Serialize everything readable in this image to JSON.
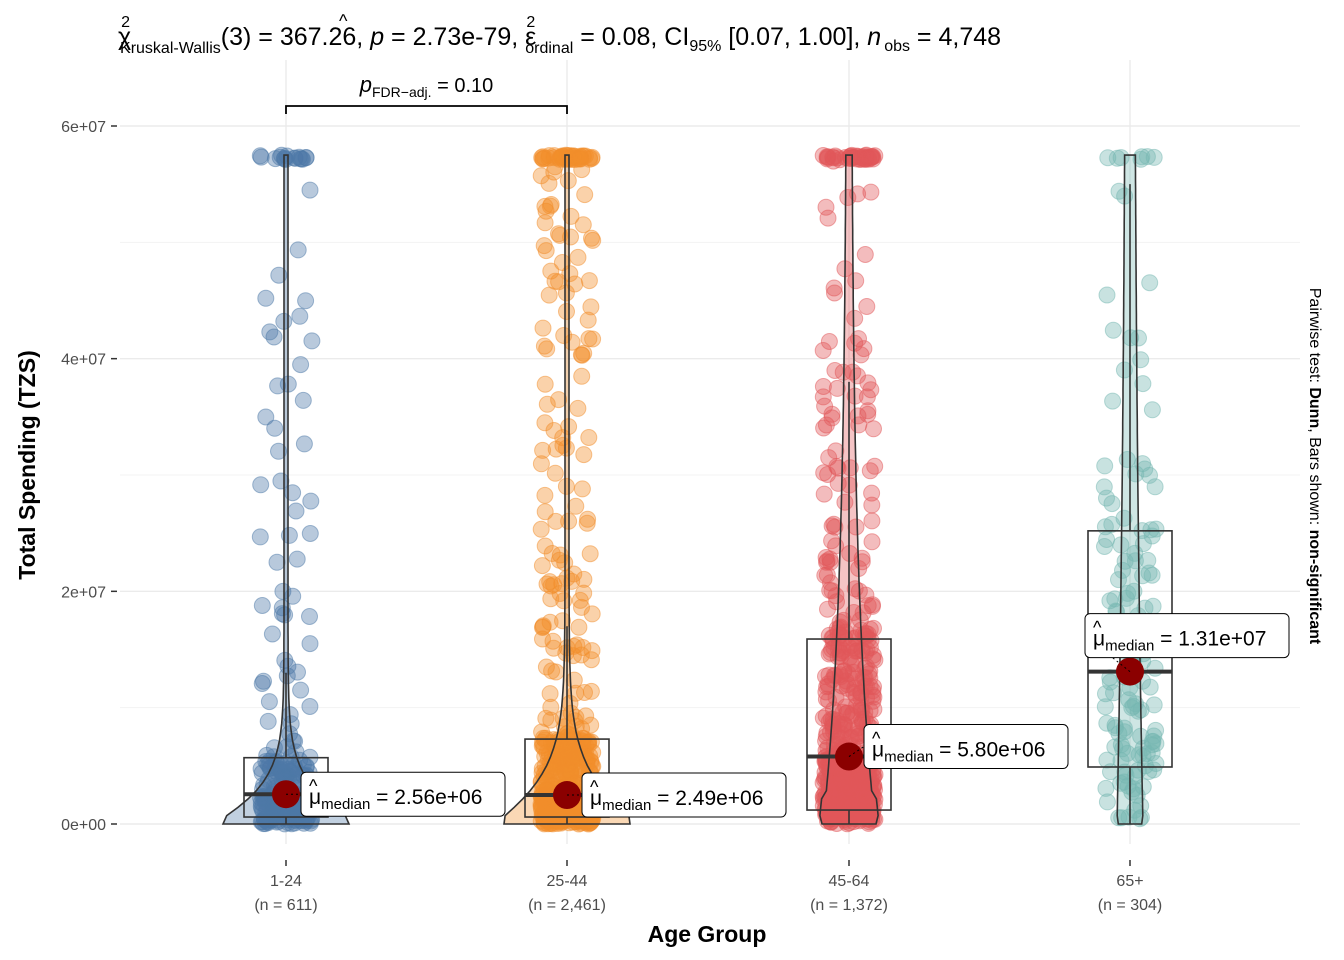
{
  "chart_data": {
    "type": "violin-box-scatter",
    "title": {
      "chi_symbol": "χ",
      "chi_sup": "2",
      "chi_sub": "Kruskal-Wallis",
      "df_part": "(3) = 367.26, ",
      "p_sym": "p",
      "p_part": " = 2.73e-79, ",
      "eps_symbol": "ε",
      "eps_hat": "^",
      "eps_sup": "2",
      "eps_sub": "ordinal",
      "eps_part": " = 0.08, CI",
      "ci_sub": "95%",
      "ci_part": " [0.07, 1.00], ",
      "n_sym": "n",
      "n_sub": "obs",
      "n_part": " = 4,748"
    },
    "xlabel": "Age Group",
    "ylabel": "Total Spending (TZS)",
    "ylim": [
      0,
      60000000
    ],
    "yticks": [
      {
        "value": 0,
        "label": "0e+00"
      },
      {
        "value": 20000000,
        "label": "2e+07"
      },
      {
        "value": 40000000,
        "label": "4e+07"
      },
      {
        "value": 60000000,
        "label": "6e+07"
      }
    ],
    "y_minor_gridlines": [
      10000000,
      30000000,
      50000000
    ],
    "grid": true,
    "caption": {
      "prefix": "Pairwise test: ",
      "test": "Dunn",
      "middle": ", Bars shown: ",
      "shown": "non-significant"
    },
    "pairwise": [
      {
        "from": "1-24",
        "to": "25-44",
        "p_sym": "p",
        "p_sub": "FDR−adj.",
        "p_text": " = 0.10"
      }
    ],
    "median_label_prefix": "μ",
    "median_label_sub": "median",
    "groups": [
      {
        "name": "1-24",
        "n_label": "(n = 611)",
        "color": "#4E79A7",
        "median": 2560000,
        "median_label": " = 2.56e+06",
        "q1": 600000,
        "q3": 5700000,
        "whisker_low": 0,
        "whisker_high": 13000000,
        "max": 57500000,
        "violin_shape": "wide-base"
      },
      {
        "name": "25-44",
        "n_label": "(n = 2,461)",
        "color": "#F28E2B",
        "median": 2490000,
        "median_label": " = 2.49e+06",
        "q1": 600000,
        "q3": 7300000,
        "whisker_low": 0,
        "whisker_high": 17000000,
        "max": 57500000,
        "violin_shape": "wide-base"
      },
      {
        "name": "45-64",
        "n_label": "(n = 1,372)",
        "color": "#E15759",
        "median": 5800000,
        "median_label": " = 5.80e+06",
        "q1": 1200000,
        "q3": 15900000,
        "whisker_low": 0,
        "whisker_high": 38000000,
        "max": 57500000,
        "violin_shape": "medium"
      },
      {
        "name": "65+",
        "n_label": "(n = 304)",
        "color": "#76B7B2",
        "median": 13100000,
        "median_label": " = 1.31e+07",
        "q1": 4900000,
        "q3": 25200000,
        "whisker_low": 0,
        "whisker_high": 55000000,
        "max": 57500000,
        "violin_shape": "narrow"
      }
    ],
    "median_point_color": "#8B0000"
  }
}
